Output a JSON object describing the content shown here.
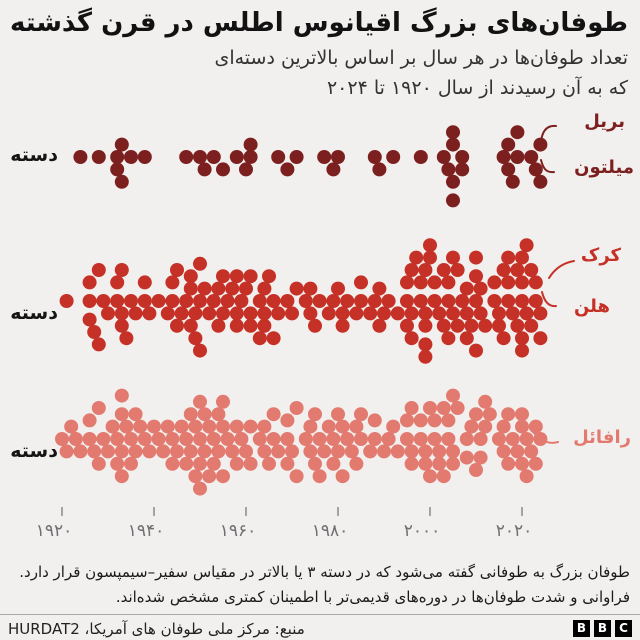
{
  "header": {
    "title": "طوفان‌های بزرگ اقیانوس اطلس در قرن گذشته",
    "subtitle_line1": "تعداد طوفان‌ها در هر سال بر اساس بالاترین دسته‌ای",
    "subtitle_line2": "که به آن رسیدند از سال ۱۹۲۰ تا ۲۰۲۴"
  },
  "chart_data": {
    "type": "scatter",
    "subtype": "beeswarm-dot-plot",
    "title": "طوفان‌های بزرگ اقیانوس اطلس در قرن گذشته",
    "x_range_years": [
      1920,
      2024
    ],
    "x_ticks": [
      {
        "year": 1920,
        "label": "۱۹۲۰"
      },
      {
        "year": 1940,
        "label": "۱۹۴۰"
      },
      {
        "year": 1960,
        "label": "۱۹۶۰"
      },
      {
        "year": 1980,
        "label": "۱۹۸۰"
      },
      {
        "year": 2000,
        "label": "۲۰۰۰"
      },
      {
        "year": 2020,
        "label": "۲۰۲۰"
      }
    ],
    "legend_position": "none",
    "grid": false,
    "series": [
      {
        "axis_label": "دسته",
        "category": 5,
        "color": "#7c201f",
        "counts_by_year": {
          "1924": 1,
          "1928": 1,
          "1932": 2,
          "1933": 2,
          "1935": 1,
          "1938": 1,
          "1947": 1,
          "1950": 1,
          "1951": 1,
          "1953": 1,
          "1955": 1,
          "1958": 1,
          "1960": 1,
          "1961": 2,
          "1967": 1,
          "1969": 1,
          "1971": 1,
          "1977": 1,
          "1979": 1,
          "1980": 1,
          "1988": 1,
          "1989": 1,
          "1992": 1,
          "1998": 1,
          "2003": 1,
          "2004": 1,
          "2005": 4,
          "2007": 2,
          "2016": 1,
          "2017": 2,
          "2018": 1,
          "2019": 2,
          "2022": 1,
          "2023": 1,
          "2024": 2
        }
      },
      {
        "axis_label": "دسته",
        "category": 4,
        "color": "#c53127",
        "counts_by_year": {
          "1921": 1,
          "1926": 3,
          "1927": 1,
          "1928": 2,
          "1929": 1,
          "1930": 1,
          "1932": 2,
          "1933": 3,
          "1934": 1,
          "1935": 1,
          "1936": 1,
          "1938": 2,
          "1939": 1,
          "1941": 1,
          "1943": 1,
          "1944": 2,
          "1945": 2,
          "1946": 1,
          "1947": 1,
          "1948": 3,
          "1949": 2,
          "1950": 3,
          "1951": 1,
          "1952": 1,
          "1953": 1,
          "1954": 2,
          "1955": 2,
          "1956": 1,
          "1957": 1,
          "1958": 3,
          "1959": 1,
          "1960": 1,
          "1961": 3,
          "1963": 2,
          "1964": 3,
          "1965": 1,
          "1966": 2,
          "1967": 1,
          "1969": 1,
          "1970": 1,
          "1971": 1,
          "1973": 1,
          "1974": 2,
          "1975": 1,
          "1976": 1,
          "1978": 1,
          "1979": 1,
          "1980": 1,
          "1981": 2,
          "1982": 1,
          "1984": 1,
          "1985": 2,
          "1987": 1,
          "1988": 1,
          "1989": 2,
          "1990": 1,
          "1991": 1,
          "1993": 1,
          "1995": 3,
          "1996": 3,
          "1997": 1,
          "1998": 2,
          "1999": 5,
          "2000": 2,
          "2001": 2,
          "2002": 1,
          "2003": 2,
          "2004": 3,
          "2005": 2,
          "2006": 2,
          "2007": 1,
          "2008": 3,
          "2009": 1,
          "2010": 4,
          "2011": 2,
          "2012": 1,
          "2014": 2,
          "2015": 2,
          "2016": 2,
          "2017": 3,
          "2018": 1,
          "2019": 2,
          "2020": 5,
          "2021": 2,
          "2022": 2,
          "2023": 2,
          "2024": 2
        }
      },
      {
        "axis_label": "دسته",
        "category": 3,
        "color": "#e27a70",
        "counts_by_year": {
          "1920": 1,
          "1921": 1,
          "1922": 1,
          "1923": 1,
          "1924": 1,
          "1926": 2,
          "1927": 1,
          "1928": 2,
          "1929": 1,
          "1930": 1,
          "1931": 1,
          "1932": 2,
          "1933": 4,
          "1934": 1,
          "1935": 2,
          "1936": 2,
          "1937": 1,
          "1938": 1,
          "1939": 1,
          "1940": 1,
          "1941": 1,
          "1942": 1,
          "1943": 1,
          "1944": 2,
          "1945": 1,
          "1946": 1,
          "1947": 2,
          "1948": 2,
          "1949": 2,
          "1950": 4,
          "1951": 2,
          "1952": 2,
          "1953": 2,
          "1954": 2,
          "1955": 3,
          "1956": 1,
          "1957": 1,
          "1958": 2,
          "1959": 1,
          "1960": 1,
          "1961": 2,
          "1963": 1,
          "1964": 2,
          "1965": 1,
          "1966": 2,
          "1967": 1,
          "1969": 3,
          "1970": 1,
          "1971": 2,
          "1973": 1,
          "1974": 2,
          "1975": 2,
          "1976": 2,
          "1977": 1,
          "1978": 1,
          "1979": 2,
          "1980": 2,
          "1981": 2,
          "1982": 1,
          "1983": 1,
          "1984": 2,
          "1985": 2,
          "1987": 1,
          "1988": 2,
          "1990": 1,
          "1991": 1,
          "1992": 1,
          "1993": 1,
          "1995": 2,
          "1996": 3,
          "1998": 2,
          "1999": 2,
          "2000": 2,
          "2001": 2,
          "2002": 2,
          "2003": 2,
          "2004": 2,
          "2005": 3,
          "2006": 1,
          "2008": 2,
          "2009": 1,
          "2010": 2,
          "2011": 2,
          "2012": 2,
          "2013": 1,
          "2015": 1,
          "2016": 2,
          "2017": 2,
          "2018": 1,
          "2019": 1,
          "2020": 3,
          "2021": 2,
          "2022": 1,
          "2023": 2,
          "2024": 1
        }
      }
    ],
    "annotations": [
      {
        "storm": "بریل",
        "series": 0,
        "year": 2024
      },
      {
        "storm": "میلتون",
        "series": 0,
        "year": 2024
      },
      {
        "storm": "کرک",
        "series": 1,
        "year": 2024
      },
      {
        "storm": "هلن",
        "series": 1,
        "year": 2024
      },
      {
        "storm": "رافائل",
        "series": 2,
        "year": 2024
      }
    ]
  },
  "footer": {
    "note_line1": "طوفان بزرگ به طوفانی گفته می‌شود که در دسته ۳ یا بالاتر در مقیاس سفیر–سیمپسون قرار دارد.",
    "note_line2": "فراوانی و شدت طوفان‌ها در دوره‌های قدیمی‌تر با اطمینان کمتری مشخص شده‌اند.",
    "source": "منبع: مرکز ملی طوفان های آمریکا، HURDAT2",
    "logo": [
      "B",
      "B",
      "C"
    ]
  }
}
